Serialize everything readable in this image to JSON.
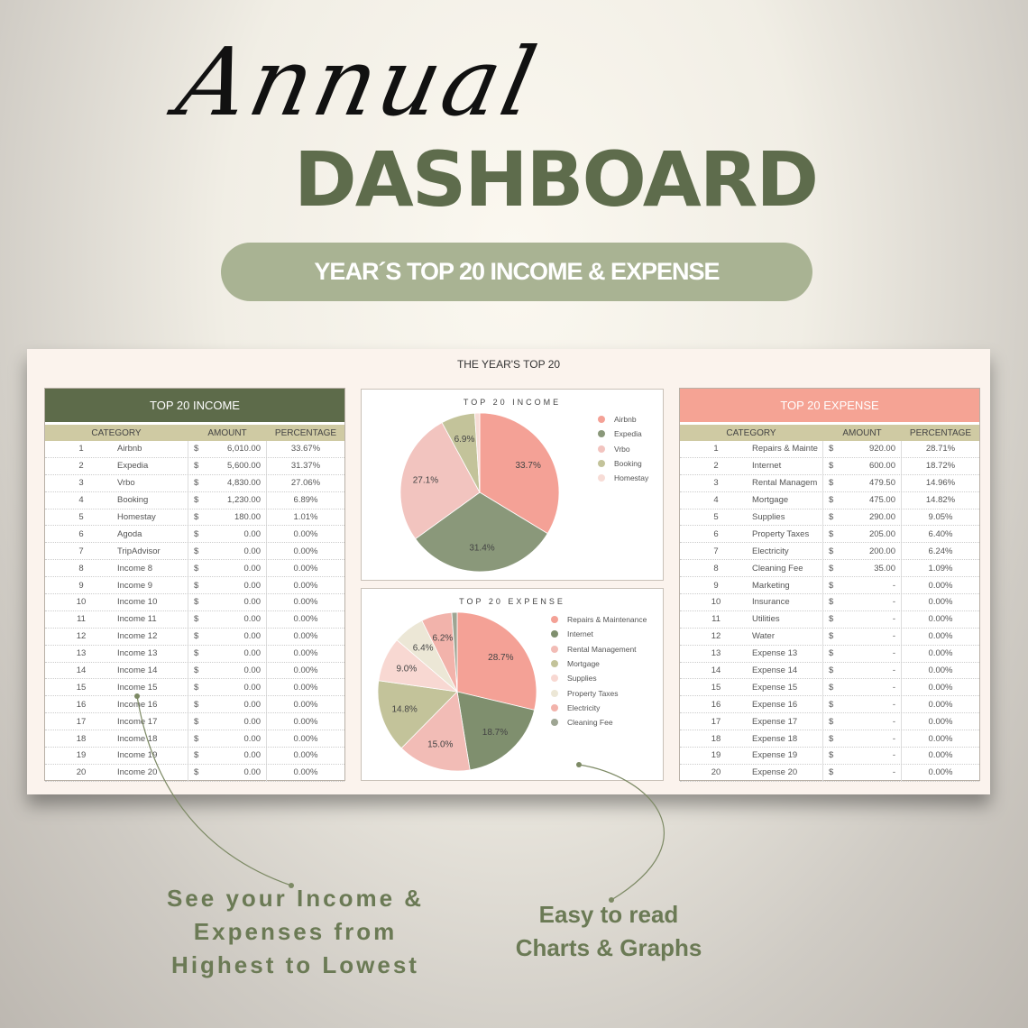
{
  "hero": {
    "script_title": "Annual",
    "title": "DASHBOARD",
    "subtitle": "YEAR´S TOP 20 INCOME & EXPENSE"
  },
  "panel_title": "THE YEAR'S TOP 20",
  "income_table": {
    "title": "TOP 20 INCOME",
    "header_color": "#5d6b4a",
    "columns": [
      "CATEGORY",
      "AMOUNT",
      "PERCENTAGE"
    ],
    "rows": [
      [
        "1",
        "Airbnb",
        "$",
        "6,010.00",
        "33.67%"
      ],
      [
        "2",
        "Expedia",
        "$",
        "5,600.00",
        "31.37%"
      ],
      [
        "3",
        "Vrbo",
        "$",
        "4,830.00",
        "27.06%"
      ],
      [
        "4",
        "Booking",
        "$",
        "1,230.00",
        "6.89%"
      ],
      [
        "5",
        "Homestay",
        "$",
        "180.00",
        "1.01%"
      ],
      [
        "6",
        "Agoda",
        "$",
        "0.00",
        "0.00%"
      ],
      [
        "7",
        "TripAdvisor",
        "$",
        "0.00",
        "0.00%"
      ],
      [
        "8",
        "Income 8",
        "$",
        "0.00",
        "0.00%"
      ],
      [
        "9",
        "Income 9",
        "$",
        "0.00",
        "0.00%"
      ],
      [
        "10",
        "Income 10",
        "$",
        "0.00",
        "0.00%"
      ],
      [
        "11",
        "Income 11",
        "$",
        "0.00",
        "0.00%"
      ],
      [
        "12",
        "Income 12",
        "$",
        "0.00",
        "0.00%"
      ],
      [
        "13",
        "Income 13",
        "$",
        "0.00",
        "0.00%"
      ],
      [
        "14",
        "Income 14",
        "$",
        "0.00",
        "0.00%"
      ],
      [
        "15",
        "Income 15",
        "$",
        "0.00",
        "0.00%"
      ],
      [
        "16",
        "Income 16",
        "$",
        "0.00",
        "0.00%"
      ],
      [
        "17",
        "Income 17",
        "$",
        "0.00",
        "0.00%"
      ],
      [
        "18",
        "Income 18",
        "$",
        "0.00",
        "0.00%"
      ],
      [
        "19",
        "Income 19",
        "$",
        "0.00",
        "0.00%"
      ],
      [
        "20",
        "Income 20",
        "$",
        "0.00",
        "0.00%"
      ]
    ]
  },
  "expense_table": {
    "title": "TOP 20 EXPENSE",
    "header_color": "#f5a394",
    "columns": [
      "CATEGORY",
      "AMOUNT",
      "PERCENTAGE"
    ],
    "rows": [
      [
        "1",
        "Repairs & Mainte",
        "$",
        "920.00",
        "28.71%"
      ],
      [
        "2",
        "Internet",
        "$",
        "600.00",
        "18.72%"
      ],
      [
        "3",
        "Rental Managem",
        "$",
        "479.50",
        "14.96%"
      ],
      [
        "4",
        "Mortgage",
        "$",
        "475.00",
        "14.82%"
      ],
      [
        "5",
        "Supplies",
        "$",
        "290.00",
        "9.05%"
      ],
      [
        "6",
        "Property Taxes",
        "$",
        "205.00",
        "6.40%"
      ],
      [
        "7",
        "Electricity",
        "$",
        "200.00",
        "6.24%"
      ],
      [
        "8",
        "Cleaning Fee",
        "$",
        "35.00",
        "1.09%"
      ],
      [
        "9",
        "Marketing",
        "$",
        "-",
        "0.00%"
      ],
      [
        "10",
        "Insurance",
        "$",
        "-",
        "0.00%"
      ],
      [
        "11",
        "Utilities",
        "$",
        "-",
        "0.00%"
      ],
      [
        "12",
        "Water",
        "$",
        "-",
        "0.00%"
      ],
      [
        "13",
        "Expense 13",
        "$",
        "-",
        "0.00%"
      ],
      [
        "14",
        "Expense 14",
        "$",
        "-",
        "0.00%"
      ],
      [
        "15",
        "Expense 15",
        "$",
        "-",
        "0.00%"
      ],
      [
        "16",
        "Expense 16",
        "$",
        "-",
        "0.00%"
      ],
      [
        "17",
        "Expense 17",
        "$",
        "-",
        "0.00%"
      ],
      [
        "18",
        "Expense 18",
        "$",
        "-",
        "0.00%"
      ],
      [
        "19",
        "Expense 19",
        "$",
        "-",
        "0.00%"
      ],
      [
        "20",
        "Expense 20",
        "$",
        "-",
        "0.00%"
      ]
    ]
  },
  "chart_data": [
    {
      "type": "pie",
      "title": "TOP 20 INCOME",
      "legend": "right",
      "categories": [
        "Airbnb",
        "Expedia",
        "Vrbo",
        "Booking",
        "Homestay"
      ],
      "values": [
        33.67,
        31.37,
        27.06,
        6.89,
        1.01
      ],
      "labels": [
        "33.7%",
        "31.4%",
        "27.1%",
        "6.9%",
        ""
      ],
      "colors": [
        "#f4a196",
        "#8a987a",
        "#f2c4bf",
        "#c3c39a",
        "#f7dcd6"
      ]
    },
    {
      "type": "pie",
      "title": "TOP 20 EXPENSE",
      "legend": "right",
      "categories": [
        "Repairs & Maintenance",
        "Internet",
        "Rental Management",
        "Mortgage",
        "Supplies",
        "Property Taxes",
        "Electricity",
        "Cleaning Fee"
      ],
      "values": [
        28.71,
        18.72,
        14.96,
        14.82,
        9.05,
        6.4,
        6.24,
        1.09
      ],
      "labels": [
        "28.7%",
        "18.7%",
        "15.0%",
        "14.8%",
        "9.0%",
        "6.4%",
        "6.2%",
        ""
      ],
      "colors": [
        "#f4a196",
        "#7f8f6e",
        "#f2bcb6",
        "#c3c39a",
        "#f8d8d2",
        "#ece7d6",
        "#f2b3ab",
        "#9ea593"
      ]
    }
  ],
  "notes": {
    "left": "See your Income & Expenses from Highest to Lowest",
    "right": "Easy to read Charts & Graphs"
  }
}
